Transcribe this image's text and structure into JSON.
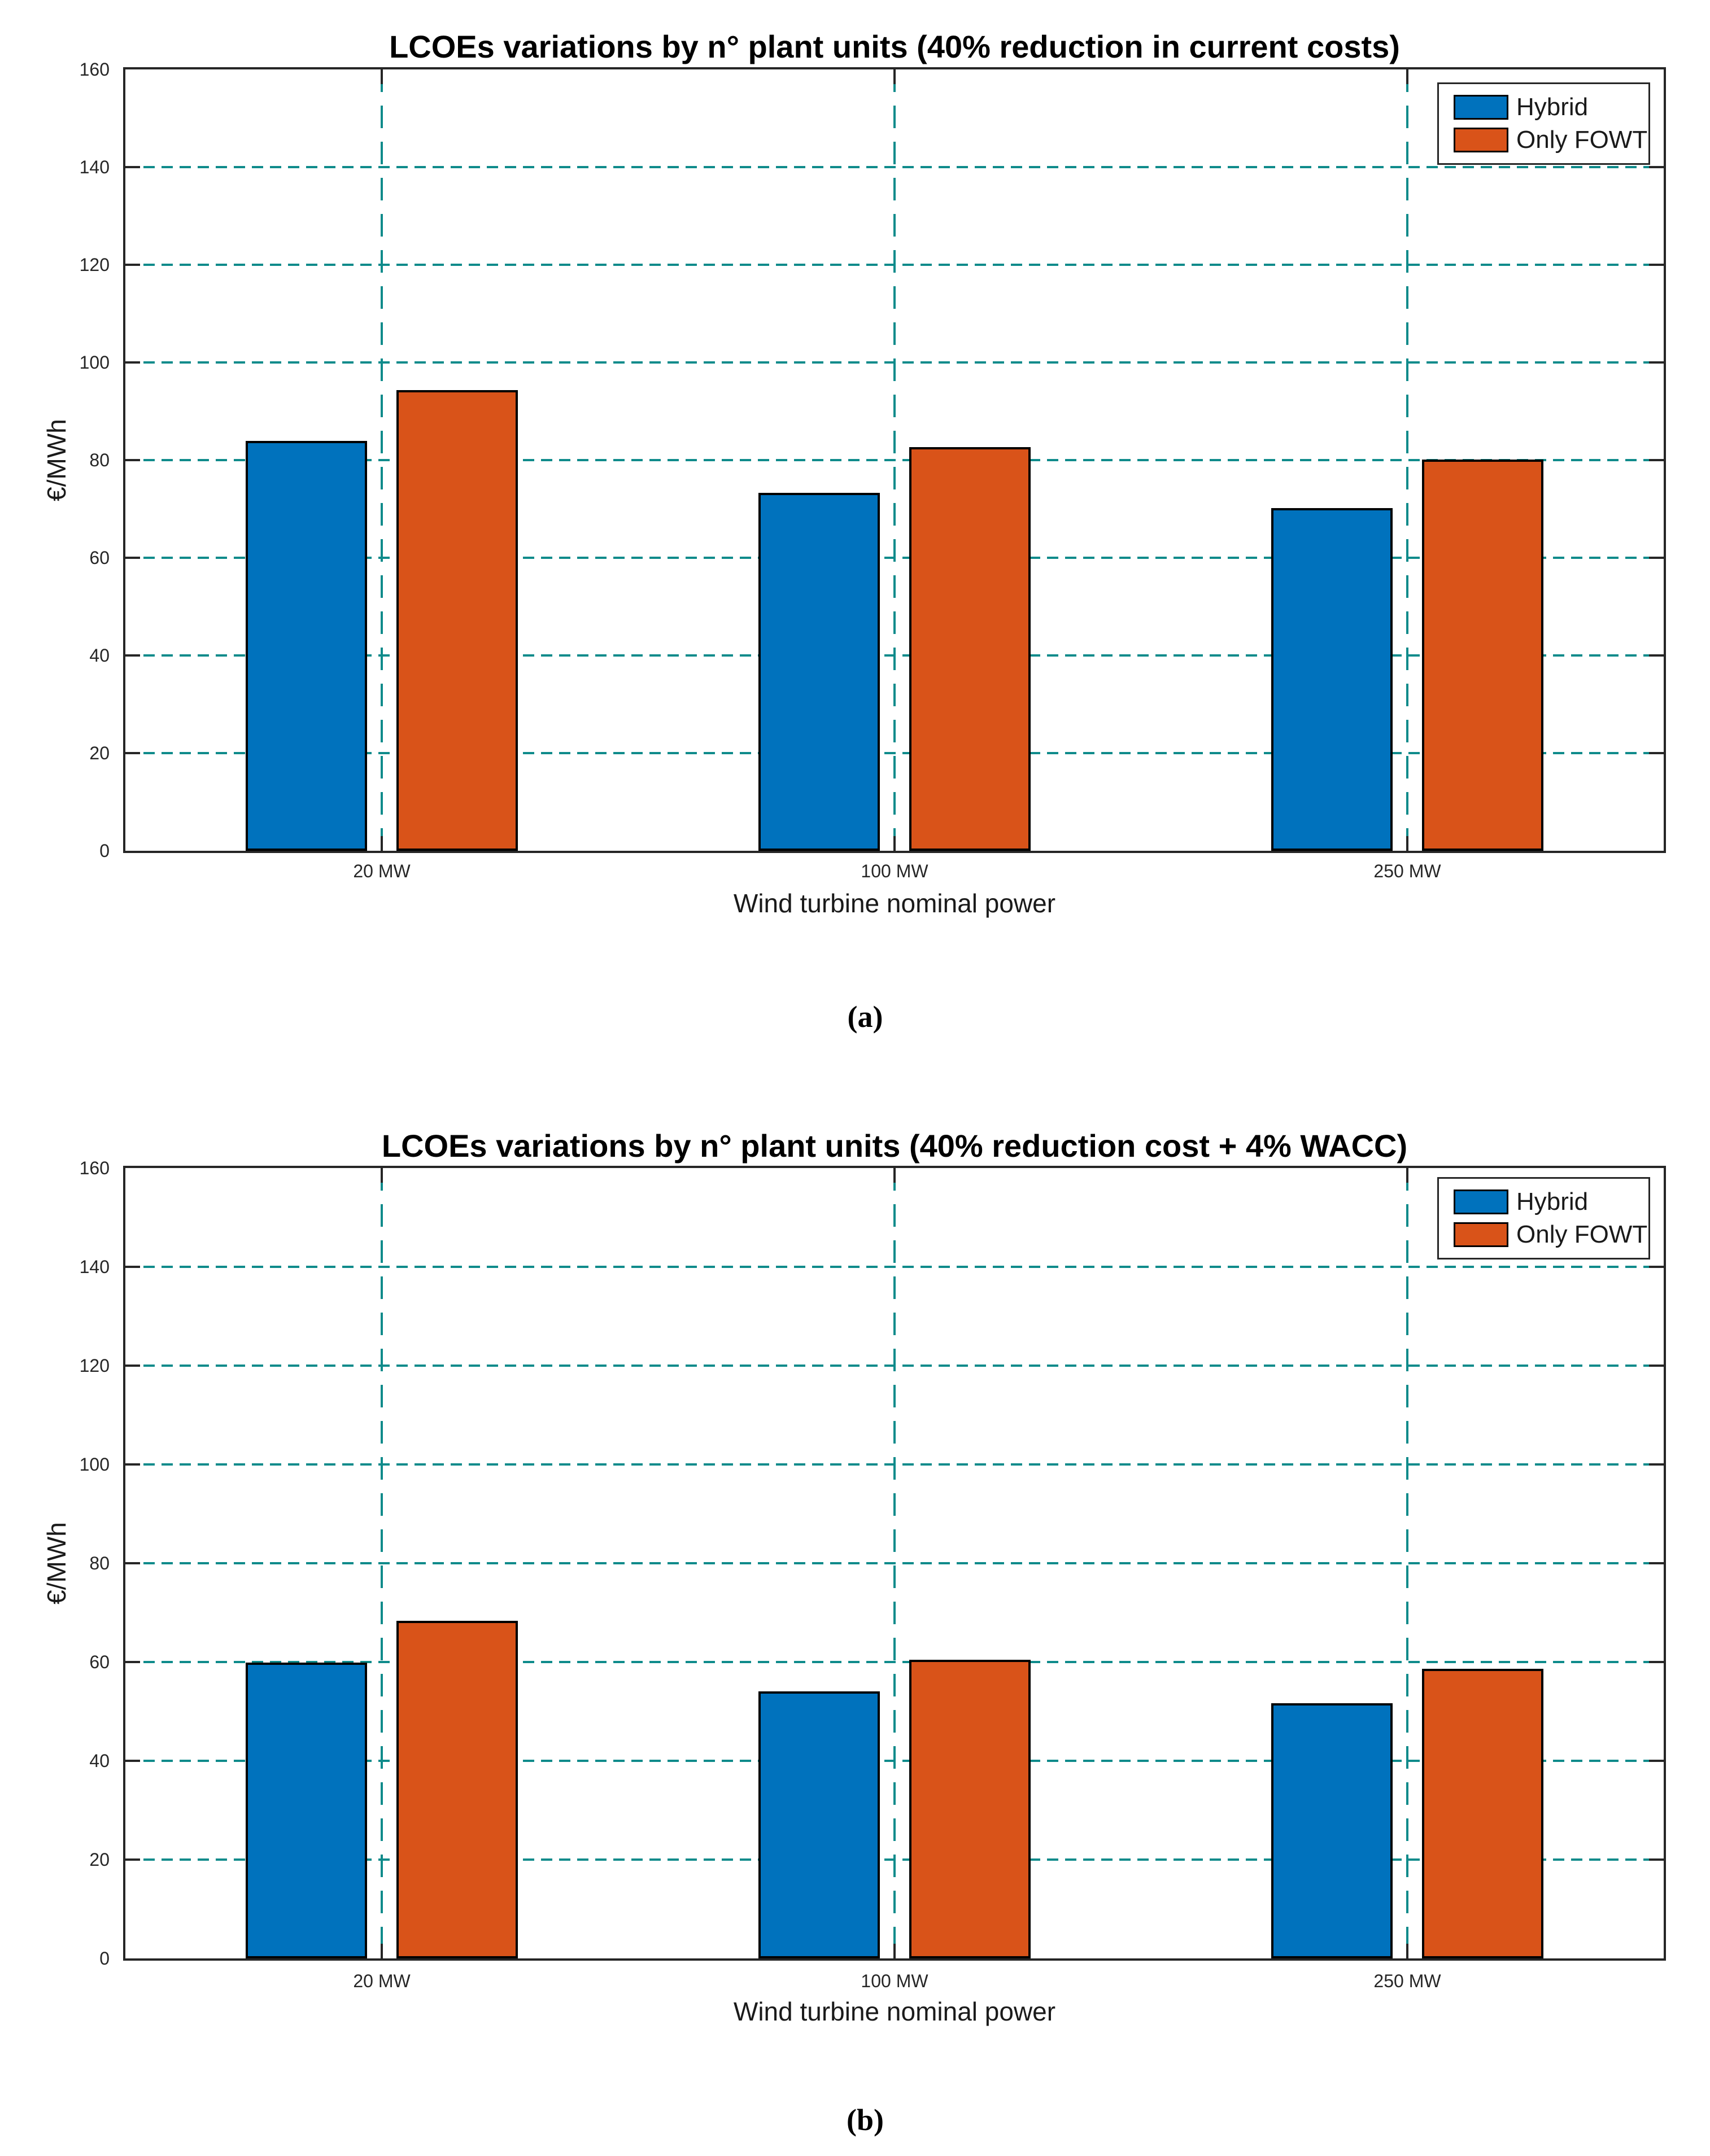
{
  "page": {
    "background": "#FFFFFF"
  },
  "colors": {
    "hybrid": "#0072BD",
    "only_fowt": "#D95319",
    "grid": "#0F8B8B",
    "axis": "#262626",
    "bar_edge": "#000000",
    "text": "#1A1A1A"
  },
  "chart_data": [
    {
      "id": "a",
      "type": "bar",
      "title": "LCOEs variations by n° plant units (40% reduction in current costs)",
      "xlabel": "Wind turbine nominal power",
      "ylabel": "€/MWh",
      "categories": [
        "20 MW",
        "100 MW",
        "250 MW"
      ],
      "series": [
        {
          "name": "Hybrid",
          "color_key": "hybrid",
          "values": [
            83.9,
            73.3,
            70.2
          ]
        },
        {
          "name": "Only FOWT",
          "color_key": "only_fowt",
          "values": [
            94.3,
            82.7,
            80.1
          ]
        }
      ],
      "ylim": [
        0,
        160
      ],
      "ytick_step": 20,
      "yticks": [
        0,
        20,
        40,
        60,
        80,
        100,
        120,
        140,
        160
      ],
      "grid": true,
      "grid_style": "dashed",
      "legend_position": "top-right",
      "caption": "(a)"
    },
    {
      "id": "b",
      "type": "bar",
      "title": "LCOEs variations by n° plant units (40% reduction cost + 4% WACC)",
      "xlabel": "Wind turbine nominal power",
      "ylabel": "€/MWh",
      "categories": [
        "20 MW",
        "100 MW",
        "250 MW"
      ],
      "series": [
        {
          "name": "Hybrid",
          "color_key": "hybrid",
          "values": [
            59.9,
            54.0,
            51.7
          ]
        },
        {
          "name": "Only FOWT",
          "color_key": "only_fowt",
          "values": [
            68.3,
            60.5,
            58.6
          ]
        }
      ],
      "ylim": [
        0,
        160
      ],
      "ytick_step": 20,
      "yticks": [
        0,
        20,
        40,
        60,
        80,
        100,
        120,
        140,
        160
      ],
      "grid": true,
      "grid_style": "dashed",
      "legend_position": "top-right",
      "caption": "(b)"
    }
  ]
}
